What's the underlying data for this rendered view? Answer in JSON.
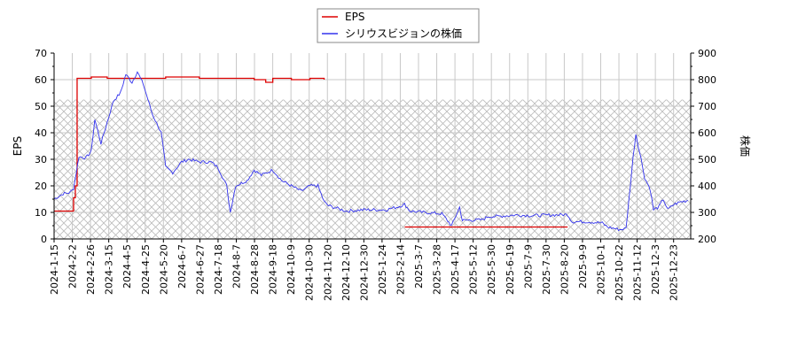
{
  "chart_data": {
    "type": "line",
    "title": "",
    "legend": {
      "position": "top-center",
      "entries": [
        {
          "label": "EPS",
          "color": "#dd0000"
        },
        {
          "label": "シリウスビジョンの株価",
          "color": "#3333ee"
        }
      ]
    },
    "xlabel": "",
    "ylabel_left": "EPS",
    "ylabel_right": "株価",
    "ylim_left": [
      0,
      70
    ],
    "ylim_right": [
      200,
      900
    ],
    "yticks_left": [
      0,
      10,
      20,
      30,
      40,
      50,
      60,
      70
    ],
    "yticks_right": [
      200,
      300,
      400,
      500,
      600,
      700,
      800,
      900
    ],
    "grid": true,
    "hatch_region": {
      "ylim_left": [
        0,
        52.5
      ],
      "pattern": "crosshatch",
      "color": "#bbbbbb"
    },
    "x_tick_labels": [
      "2024-1-15",
      "2024-2-2",
      "2024-2-26",
      "2024-3-15",
      "2024-4-5",
      "2024-4-25",
      "2024-5-20",
      "2024-6-7",
      "2024-6-27",
      "2024-7-18",
      "2024-8-7",
      "2024-8-28",
      "2024-9-18",
      "2024-10-9",
      "2024-10-30",
      "2024-11-20",
      "2024-12-10",
      "2024-12-30",
      "2025-1-24",
      "2025-2-14",
      "2025-3-7",
      "2025-3-28",
      "2025-4-17",
      "2025-5-12",
      "2025-5-30",
      "2025-6-19",
      "2025-7-9",
      "2025-7-30",
      "2025-8-20",
      "2025-9-9",
      "2025-10-1",
      "2025-10-22",
      "2025-11-12",
      "2025-12-3",
      "2025-12-23"
    ],
    "series": [
      {
        "name": "EPS",
        "axis": "left",
        "color": "#dd0000",
        "points": [
          [
            "2024-1-15",
            10.5
          ],
          [
            "2024-2-2",
            10.5
          ],
          [
            "2024-2-6",
            15.5
          ],
          [
            "2024-2-8",
            20
          ],
          [
            "2024-2-10",
            60.5
          ],
          [
            "2024-2-26",
            61
          ],
          [
            "2024-3-15",
            60.5
          ],
          [
            "2024-4-5",
            60.5
          ],
          [
            "2024-4-25",
            60.5
          ],
          [
            "2024-5-20",
            61
          ],
          [
            "2024-6-7",
            61
          ],
          [
            "2024-6-27",
            60.5
          ],
          [
            "2024-7-18",
            60.5
          ],
          [
            "2024-8-7",
            60.5
          ],
          [
            "2024-8-28",
            60
          ],
          [
            "2024-9-10",
            59
          ],
          [
            "2024-9-18",
            60.5
          ],
          [
            "2024-10-9",
            60
          ],
          [
            "2024-10-30",
            60.5
          ],
          [
            "2024-11-15",
            60
          ],
          [
            "2025-2-14",
            4.5
          ],
          [
            "2025-8-17",
            4.5
          ]
        ]
      },
      {
        "name": "シリウスビジョンの株価",
        "axis": "right",
        "color": "#3333ee",
        "points": [
          [
            "2024-1-15",
            350
          ],
          [
            "2024-1-25",
            370
          ],
          [
            "2024-2-2",
            375
          ],
          [
            "2024-2-6",
            390
          ],
          [
            "2024-2-12",
            510
          ],
          [
            "2024-2-20",
            505
          ],
          [
            "2024-2-26",
            530
          ],
          [
            "2024-3-1",
            650
          ],
          [
            "2024-3-8",
            560
          ],
          [
            "2024-3-15",
            640
          ],
          [
            "2024-3-22",
            720
          ],
          [
            "2024-3-30",
            750
          ],
          [
            "2024-4-5",
            820
          ],
          [
            "2024-4-12",
            790
          ],
          [
            "2024-4-18",
            830
          ],
          [
            "2024-4-25",
            780
          ],
          [
            "2024-5-5",
            670
          ],
          [
            "2024-5-15",
            600
          ],
          [
            "2024-5-20",
            470
          ],
          [
            "2024-5-28",
            450
          ],
          [
            "2024-6-7",
            490
          ],
          [
            "2024-6-15",
            500
          ],
          [
            "2024-6-27",
            490
          ],
          [
            "2024-7-10",
            490
          ],
          [
            "2024-7-18",
            470
          ],
          [
            "2024-7-28",
            400
          ],
          [
            "2024-8-1",
            300
          ],
          [
            "2024-8-7",
            400
          ],
          [
            "2024-8-20",
            420
          ],
          [
            "2024-8-28",
            460
          ],
          [
            "2024-9-5",
            440
          ],
          [
            "2024-9-18",
            460
          ],
          [
            "2024-9-28",
            420
          ],
          [
            "2024-10-9",
            400
          ],
          [
            "2024-10-20",
            380
          ],
          [
            "2024-10-30",
            400
          ],
          [
            "2024-11-8",
            400
          ],
          [
            "2024-11-15",
            340
          ],
          [
            "2024-11-20",
            325
          ],
          [
            "2024-12-10",
            305
          ],
          [
            "2024-12-30",
            310
          ],
          [
            "2025-1-24",
            310
          ],
          [
            "2025-2-5",
            320
          ],
          [
            "2025-2-14",
            330
          ],
          [
            "2025-2-20",
            305
          ],
          [
            "2025-3-7",
            300
          ],
          [
            "2025-3-28",
            295
          ],
          [
            "2025-4-8",
            250
          ],
          [
            "2025-4-17",
            320
          ],
          [
            "2025-4-20",
            270
          ],
          [
            "2025-5-12",
            272
          ],
          [
            "2025-5-20",
            285
          ],
          [
            "2025-5-30",
            285
          ],
          [
            "2025-6-19",
            290
          ],
          [
            "2025-7-9",
            288
          ],
          [
            "2025-7-30",
            290
          ],
          [
            "2025-8-17",
            292
          ],
          [
            "2025-8-22",
            265
          ],
          [
            "2025-9-9",
            265
          ],
          [
            "2025-9-25",
            260
          ],
          [
            "2025-10-1",
            245
          ],
          [
            "2025-10-15",
            235
          ],
          [
            "2025-10-22",
            240
          ],
          [
            "2025-10-30",
            510
          ],
          [
            "2025-11-2",
            595
          ],
          [
            "2025-11-8",
            500
          ],
          [
            "2025-11-12",
            430
          ],
          [
            "2025-11-18",
            390
          ],
          [
            "2025-11-22",
            310
          ],
          [
            "2025-11-28",
            320
          ],
          [
            "2025-12-3",
            350
          ],
          [
            "2025-12-8",
            310
          ],
          [
            "2025-12-15",
            330
          ],
          [
            "2025-12-23",
            340
          ],
          [
            "2025-12-31",
            345
          ]
        ]
      }
    ]
  }
}
